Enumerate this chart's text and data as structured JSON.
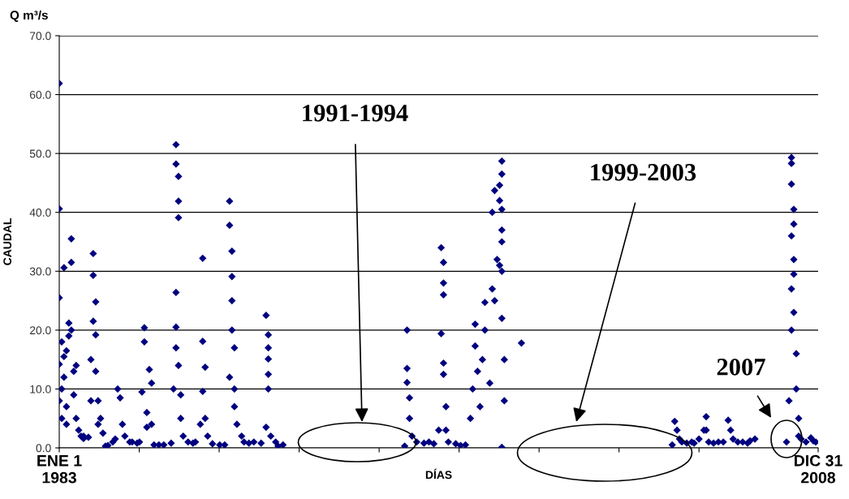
{
  "chart_data": {
    "type": "scatter",
    "title": "Q m³/s",
    "xlabel": "DÍAS",
    "ylabel": "CAUDAL",
    "xlim": [
      "1983-01-01",
      "2008-12-31"
    ],
    "xticks": [
      {
        "value": "1983-01-01",
        "label": "ENE 1\n1983"
      },
      {
        "value": "1985-09-28",
        "label": null
      },
      {
        "value": "1988-06-24",
        "label": null
      },
      {
        "value": "1991-03-22",
        "label": null
      },
      {
        "value": "1993-12-17",
        "label": null
      },
      {
        "value": "1996-09-12",
        "label": null
      },
      {
        "value": "1999-06-10",
        "label": null
      },
      {
        "value": "2002-03-06",
        "label": null
      },
      {
        "value": "2004-12-01",
        "label": null
      },
      {
        "value": "2008-12-31",
        "label": "DIC 31\n2008"
      }
    ],
    "ylim": [
      0,
      70
    ],
    "yticks": [
      {
        "value": 0,
        "label": "0.0"
      },
      {
        "value": 10,
        "label": "10.0"
      },
      {
        "value": 20,
        "label": "20.0"
      },
      {
        "value": 30,
        "label": "30.0"
      },
      {
        "value": 40,
        "label": "40.0"
      },
      {
        "value": 50,
        "label": "50.0"
      },
      {
        "value": 60,
        "label": "60.0"
      },
      {
        "value": 70,
        "label": "70.0"
      }
    ],
    "grid": "y",
    "marker": "diamond",
    "annotations": [
      "1991-1994",
      "1999-2003",
      "2007"
    ],
    "series": [
      {
        "color": "#000080",
        "x": [
          "1983-01",
          "1983-01",
          "1983-01",
          "1983-01",
          "1983-01",
          "1983-02",
          "1983-02",
          "1983-03",
          "1983-02",
          "1983-03",
          "1983-03",
          "1983-04",
          "1983-04",
          "1983-04",
          "1983-05",
          "1983-05",
          "1983-06",
          "1983-06",
          "1983-06",
          "1983-07",
          "1983-07",
          "1983-08",
          "1983-08",
          "1983-09",
          "1983-10",
          "1983-11",
          "1983-11",
          "1984-01",
          "1984-02",
          "1984-02",
          "1984-03",
          "1984-03",
          "1984-03",
          "1984-04",
          "1984-04",
          "1984-04",
          "1984-05",
          "1984-05",
          "1984-06",
          "1984-07",
          "1984-08",
          "1984-09",
          "1984-11",
          "1984-12",
          "1985-01",
          "1985-02",
          "1985-03",
          "1985-04",
          "1985-06",
          "1985-07",
          "1985-09",
          "1985-10",
          "1985-11",
          "1985-12",
          "1985-12",
          "1986-01",
          "1986-01",
          "1986-02",
          "1986-03",
          "1986-03",
          "1986-04",
          "1986-06",
          "1986-08",
          "1986-11",
          "1986-12",
          "1987-01",
          "1987-01",
          "1987-02",
          "1987-02",
          "1987-02",
          "1987-01",
          "1987-01",
          "1987-01",
          "1987-02",
          "1987-03",
          "1987-03",
          "1987-04",
          "1987-06",
          "1987-08",
          "1987-09",
          "1987-11",
          "1987-12",
          "1987-12",
          "1987-12",
          "1988-01",
          "1988-01",
          "1988-02",
          "1988-04",
          "1988-07",
          "1988-09",
          "1988-11",
          "1988-11",
          "1988-11",
          "1988-12",
          "1988-12",
          "1988-12",
          "1988-12",
          "1989-01",
          "1989-01",
          "1989-01",
          "1989-02",
          "1989-04",
          "1989-05",
          "1989-07",
          "1989-09",
          "1989-12",
          "1990-02",
          "1990-02",
          "1990-03",
          "1990-03",
          "1990-03",
          "1990-03",
          "1990-03",
          "1990-04",
          "1990-06",
          "1990-07",
          "1990-09",
          "1994-11",
          "1994-12",
          "1994-12",
          "1994-12",
          "1995-01",
          "1995-01",
          "1995-02",
          "1995-04",
          "1995-07",
          "1995-09",
          "1995-11",
          "1996-01",
          "1996-02",
          "1996-02",
          "1996-03",
          "1996-03",
          "1996-03",
          "1996-03",
          "1996-03",
          "1996-04",
          "1996-04",
          "1996-05",
          "1996-08",
          "1996-10",
          "1996-12",
          "1997-02",
          "1997-03",
          "1997-04",
          "1997-04",
          "1997-05",
          "1997-06",
          "1997-07",
          "1997-08",
          "1997-08",
          "1997-10",
          "1997-11",
          "1997-11",
          "1997-12",
          "1997-12",
          "1998-01",
          "1998-02",
          "1998-02",
          "1998-02",
          "1998-03",
          "1998-03",
          "1998-03",
          "1998-03",
          "1998-03",
          "1998-03",
          "1998-03",
          "1998-04",
          "1998-04",
          "1998-03",
          "1998-11",
          "2004-01",
          "2004-02",
          "2004-03",
          "2004-04",
          "2004-05",
          "2004-07",
          "2004-09",
          "2004-10",
          "2004-12",
          "2005-02",
          "2005-03",
          "2005-03",
          "2005-04",
          "2005-06",
          "2005-08",
          "2005-10",
          "2005-12",
          "2006-01",
          "2006-02",
          "2006-04",
          "2006-06",
          "2006-08",
          "2006-09",
          "2006-11",
          "2007-12",
          "2008-01",
          "2008-02",
          "2008-02",
          "2008-02",
          "2008-02",
          "2008-02",
          "2008-02",
          "2008-03",
          "2008-03",
          "2008-03",
          "2008-03",
          "2008-03",
          "2008-04",
          "2008-04",
          "2008-05",
          "2008-05",
          "2008-06",
          "2008-08",
          "2008-10",
          "2008-11",
          "2008-12"
        ],
        "values": [
          61.9,
          40.6,
          25.5,
          14.2,
          8,
          5,
          10,
          30.6,
          18,
          15.5,
          12,
          16.5,
          7,
          4,
          21.2,
          19,
          35.5,
          31.5,
          20,
          13,
          9,
          14,
          5,
          3,
          2,
          1.6,
          2,
          1.8,
          8,
          15,
          21.5,
          29.3,
          33,
          24.8,
          19.2,
          13,
          8,
          4,
          5,
          2.5,
          0.3,
          0.4,
          1,
          1.5,
          10,
          8.5,
          4,
          2,
          1,
          1,
          0.8,
          1,
          9.5,
          20.4,
          18,
          6,
          3.5,
          13.3,
          11,
          4,
          0.5,
          0.5,
          0.5,
          0.8,
          10,
          51.5,
          48.2,
          46.1,
          41.9,
          39.1,
          26.4,
          20.5,
          17,
          14,
          9,
          5,
          2,
          1,
          0.8,
          1,
          4,
          9.6,
          32.2,
          18.1,
          13.7,
          5,
          2,
          0.7,
          0.5,
          0.5,
          12,
          41.9,
          37.8,
          33.4,
          29.1,
          25,
          20,
          17,
          10,
          7,
          4,
          2,
          1,
          0.8,
          1,
          0.8,
          3.5,
          22.5,
          19.2,
          17,
          15.1,
          12.5,
          10,
          2,
          1,
          0.3,
          0.5,
          0.3,
          20,
          13.5,
          11.1,
          8.5,
          5,
          2,
          1,
          0.8,
          1,
          0.7,
          3,
          19.4,
          34,
          31.5,
          28,
          26,
          14.4,
          12.5,
          7,
          3,
          1,
          0.7,
          0.4,
          0.5,
          5,
          10,
          21,
          17.3,
          13,
          7,
          15,
          24.7,
          20,
          11,
          27,
          40,
          43.7,
          25,
          32,
          31,
          44.6,
          42,
          48.7,
          46.5,
          40.5,
          37,
          35,
          30,
          22,
          15,
          8,
          0.1,
          17.8,
          0.5,
          4.5,
          3,
          1.5,
          1,
          0.8,
          1,
          0.8,
          1.5,
          3,
          5.3,
          3,
          1,
          0.8,
          1,
          1,
          4.7,
          3,
          1.5,
          1,
          1,
          0.8,
          1.2,
          1.5,
          1,
          8,
          20,
          27,
          36,
          49.3,
          48.3,
          44.8,
          40.5,
          38,
          32,
          29.5,
          23,
          16,
          10,
          5,
          2,
          1.5,
          1,
          1.7,
          1.2,
          1
        ]
      }
    ]
  }
}
